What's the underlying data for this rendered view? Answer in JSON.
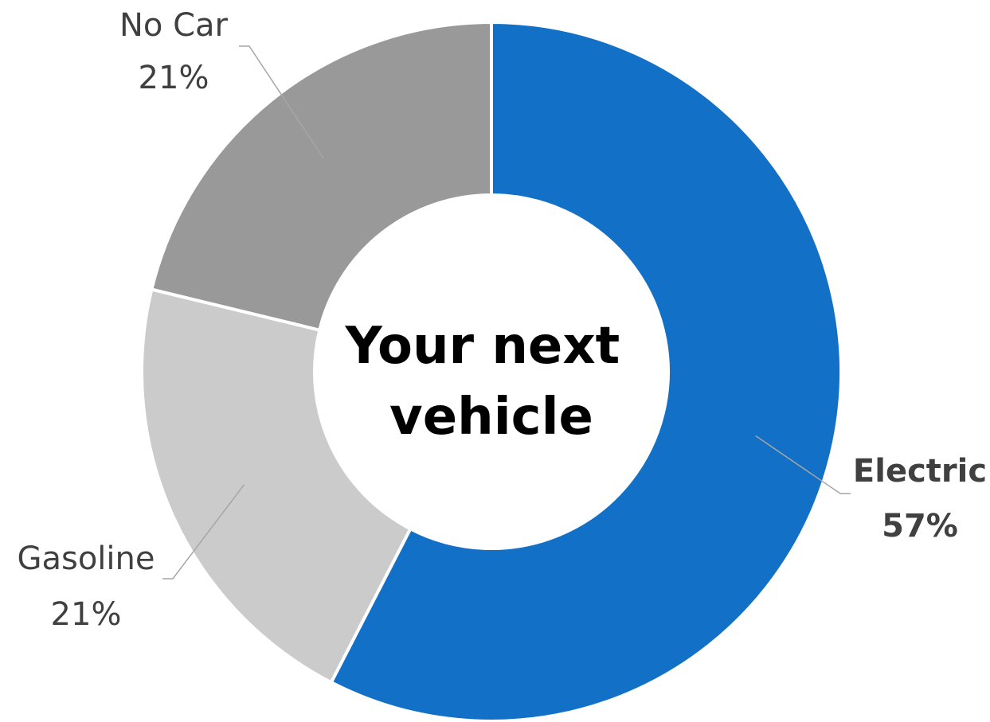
{
  "chart_data": {
    "type": "pie",
    "variant": "donut",
    "title": "Your next vehicle",
    "title_lines": [
      "Your next",
      "vehicle"
    ],
    "title_position": "center",
    "legend": "none",
    "start": "top",
    "direction": "clockwise",
    "slices": [
      {
        "label": "Electric",
        "value": 57,
        "display": "57%",
        "color": "#1270C6",
        "label_bold": true
      },
      {
        "label": "Gasoline",
        "value": 21,
        "display": "21%",
        "color": "#CBCBCB",
        "label_bold": false
      },
      {
        "label": "No Car",
        "value": 21,
        "display": "21%",
        "color": "#999999",
        "label_bold": false
      }
    ]
  }
}
